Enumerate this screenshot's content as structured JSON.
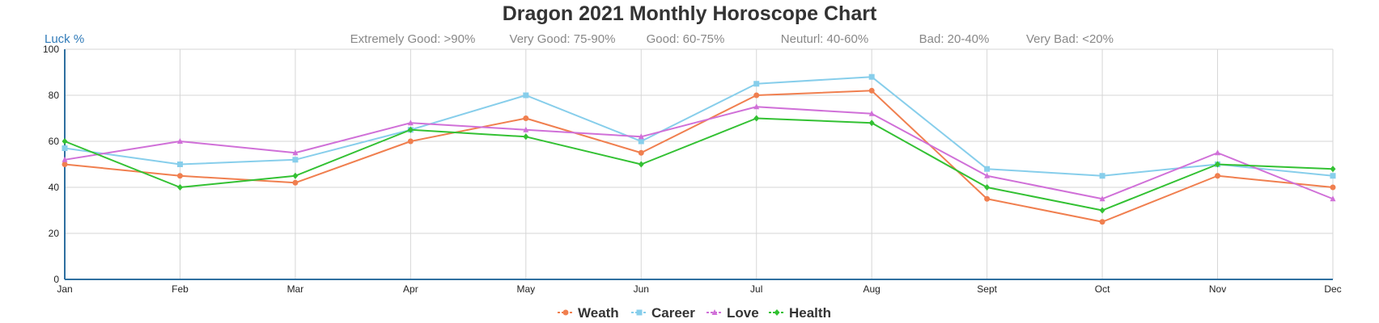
{
  "chart_data": {
    "type": "line",
    "title": "Dragon 2021 Monthly Horoscope Chart",
    "subtitle_items": [
      "Extremely Good: >90%",
      "Very Good: 75-90%",
      "Good: 60-75%",
      "Neuturl: 40-60%",
      "Bad: 20-40%",
      "Very Bad: <20%"
    ],
    "ylabel": "Luck %",
    "xlabel": "",
    "categories": [
      "Jan",
      "Feb",
      "Mar",
      "Apr",
      "May",
      "Jun",
      "Jul",
      "Aug",
      "Sept",
      "Oct",
      "Nov",
      "Dec"
    ],
    "ylim": [
      0,
      100
    ],
    "yticks": [
      0,
      20,
      40,
      60,
      80,
      100
    ],
    "grid": true,
    "legend_position": "bottom",
    "series": [
      {
        "name": "Weath",
        "color": "#f07f4f",
        "marker": "circle",
        "values": [
          50,
          45,
          42,
          60,
          70,
          55,
          80,
          82,
          35,
          25,
          45,
          40
        ]
      },
      {
        "name": "Career",
        "color": "#87ceeb",
        "marker": "square",
        "values": [
          57,
          50,
          52,
          65,
          80,
          60,
          85,
          88,
          48,
          45,
          50,
          45
        ]
      },
      {
        "name": "Love",
        "color": "#d070d8",
        "marker": "triangle",
        "values": [
          52,
          60,
          55,
          68,
          65,
          62,
          75,
          72,
          45,
          35,
          55,
          35
        ]
      },
      {
        "name": "Health",
        "color": "#33c133",
        "marker": "diamond",
        "values": [
          60,
          40,
          45,
          65,
          62,
          50,
          70,
          68,
          40,
          30,
          50,
          48
        ]
      }
    ]
  }
}
